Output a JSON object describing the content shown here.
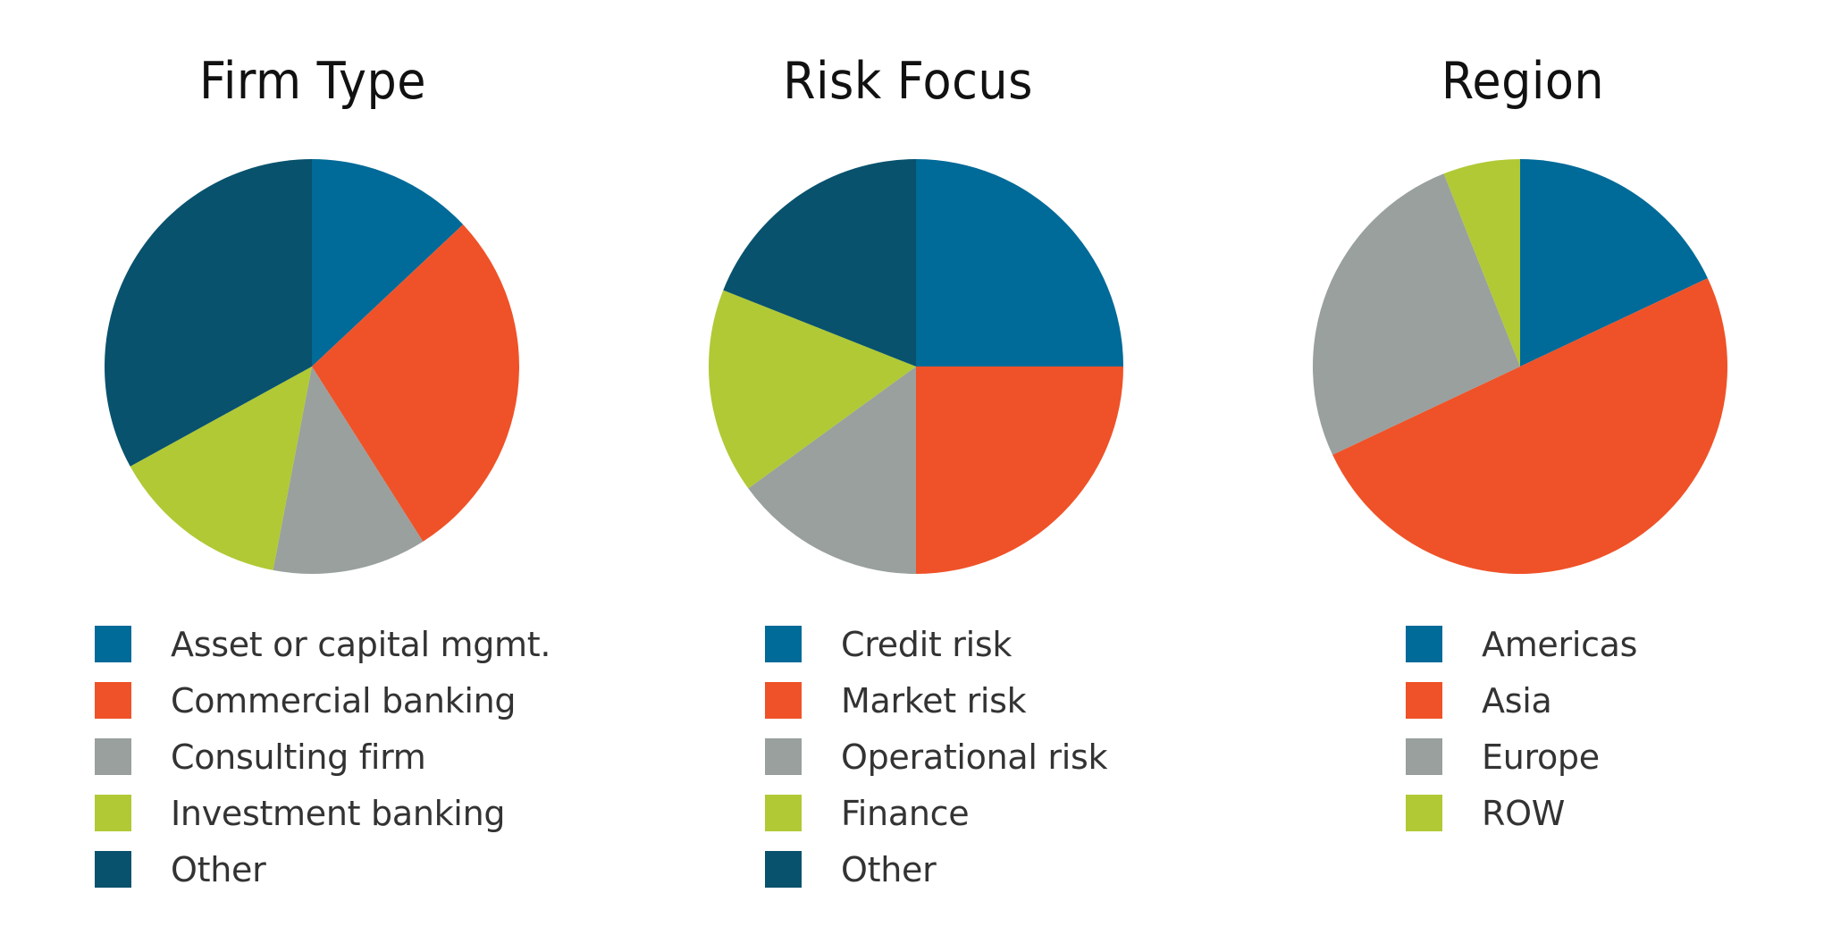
{
  "colors": {
    "blue": "#006a98",
    "orange": "#ef5228",
    "gray": "#99a09e",
    "green": "#b0c935",
    "navy": "#08526d",
    "title_text": "#111111",
    "legend_text": "#333333"
  },
  "charts": [
    {
      "title": "Firm Type",
      "legend": [
        {
          "label": "Asset or capital mgmt.",
          "color": "#006a98"
        },
        {
          "label": "Commercial banking",
          "color": "#ef5228"
        },
        {
          "label": "Consulting firm",
          "color": "#99a09e"
        },
        {
          "label": "Investment banking",
          "color": "#b0c935"
        },
        {
          "label": "Other",
          "color": "#08526d"
        }
      ]
    },
    {
      "title": "Risk Focus",
      "legend": [
        {
          "label": "Credit risk",
          "color": "#006a98"
        },
        {
          "label": "Market risk",
          "color": "#ef5228"
        },
        {
          "label": "Operational risk",
          "color": "#99a09e"
        },
        {
          "label": "Finance",
          "color": "#b0c935"
        },
        {
          "label": "Other",
          "color": "#08526d"
        }
      ]
    },
    {
      "title": "Region",
      "legend": [
        {
          "label": "Americas",
          "color": "#006a98"
        },
        {
          "label": "Asia",
          "color": "#ef5228"
        },
        {
          "label": "Europe",
          "color": "#99a09e"
        },
        {
          "label": "ROW",
          "color": "#b0c935"
        }
      ]
    }
  ],
  "chart_data": [
    {
      "type": "pie",
      "title": "Firm Type",
      "categories": [
        "Asset or capital mgmt.",
        "Commercial banking",
        "Consulting firm",
        "Investment banking",
        "Other"
      ],
      "values": [
        13,
        28,
        12,
        14,
        33
      ],
      "unit": "percent (estimated from slice angles)",
      "start_angle": "12 o'clock, clockwise",
      "legend_position": "bottom"
    },
    {
      "type": "pie",
      "title": "Risk Focus",
      "categories": [
        "Credit risk",
        "Market risk",
        "Operational risk",
        "Finance",
        "Other"
      ],
      "values": [
        25,
        25,
        15,
        16,
        19
      ],
      "unit": "percent (estimated from slice angles)",
      "start_angle": "12 o'clock, clockwise",
      "legend_position": "bottom"
    },
    {
      "type": "pie",
      "title": "Region",
      "categories": [
        "Americas",
        "Asia",
        "Europe",
        "ROW"
      ],
      "values": [
        18,
        50,
        26,
        6
      ],
      "unit": "percent (estimated from slice angles)",
      "start_angle": "12 o'clock, clockwise",
      "legend_position": "bottom"
    }
  ]
}
